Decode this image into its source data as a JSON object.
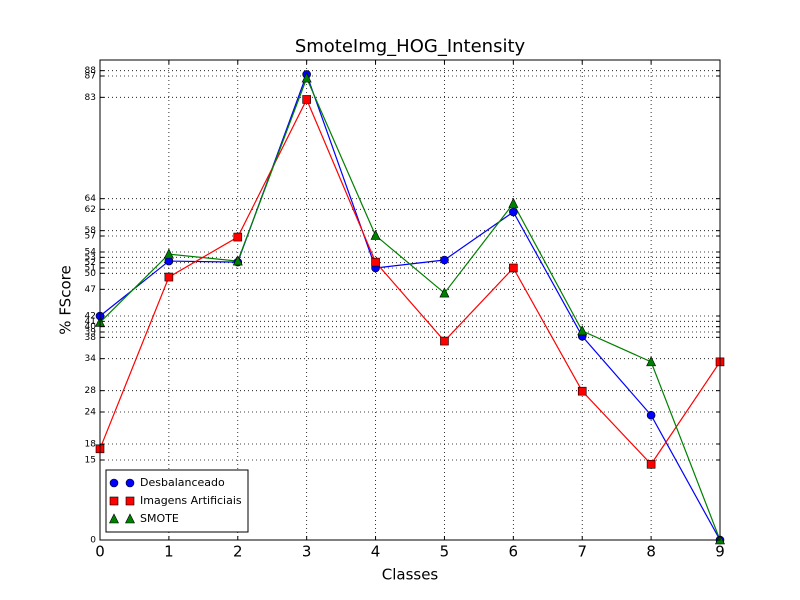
{
  "chart_data": {
    "type": "line",
    "title": "SmoteImg_HOG_Intensity",
    "xlabel": "Classes",
    "ylabel": "% FScore",
    "x": [
      0,
      1,
      2,
      3,
      4,
      5,
      6,
      7,
      8,
      9
    ],
    "series": [
      {
        "name": "Desbalanceado",
        "color": "#0000ff",
        "marker": "circle",
        "values": [
          42.0,
          52.3,
          52.1,
          87.3,
          51.0,
          52.5,
          61.5,
          38.2,
          23.4,
          0
        ]
      },
      {
        "name": "Imagens Artificiais",
        "color": "#ff0000",
        "marker": "square",
        "values": [
          17.1,
          49.3,
          56.8,
          82.6,
          52.1,
          37.3,
          51.0,
          27.9,
          14.2,
          33.4
        ]
      },
      {
        "name": "SMOTE",
        "color": "#008000",
        "marker": "triangle",
        "values": [
          40.8,
          53.6,
          52.3,
          86.6,
          57.1,
          46.3,
          63.1,
          39.2,
          33.4,
          0
        ]
      }
    ],
    "xlim": [
      0,
      9
    ],
    "xticks": [
      0,
      1,
      2,
      3,
      4,
      5,
      6,
      7,
      8,
      9
    ],
    "ylim": [
      0,
      90
    ],
    "yticks": [
      0,
      15,
      18,
      24,
      28,
      34,
      38,
      39,
      40,
      41,
      42,
      47,
      50,
      51,
      52,
      53,
      54,
      57,
      58,
      62,
      64,
      83,
      87,
      88
    ],
    "grid": true,
    "legend": "lower left"
  }
}
